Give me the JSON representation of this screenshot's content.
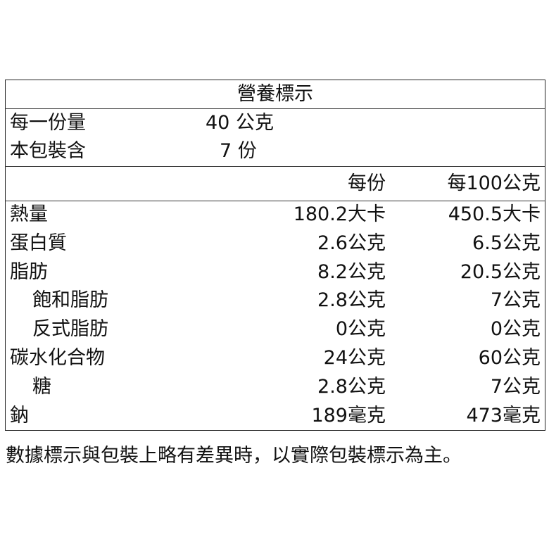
{
  "title": "營養標示",
  "serving": [
    {
      "label": "每一份量",
      "value": "40 公克"
    },
    {
      "label": "本包裝含",
      "value": "7 份"
    }
  ],
  "columns": [
    "每份",
    "每100公克"
  ],
  "rows": [
    {
      "name": "熱量",
      "indent": false,
      "per_serving": "180.2大卡",
      "per_100g": "450.5大卡"
    },
    {
      "name": "蛋白質",
      "indent": false,
      "per_serving": "2.6公克",
      "per_100g": "6.5公克"
    },
    {
      "name": "脂肪",
      "indent": false,
      "per_serving": "8.2公克",
      "per_100g": "20.5公克"
    },
    {
      "name": "飽和脂肪",
      "indent": true,
      "per_serving": "2.8公克",
      "per_100g": "7公克"
    },
    {
      "name": "反式脂肪",
      "indent": true,
      "per_serving": "0公克",
      "per_100g": "0公克"
    },
    {
      "name": "碳水化合物",
      "indent": false,
      "per_serving": "24公克",
      "per_100g": "60公克"
    },
    {
      "name": "糖",
      "indent": true,
      "per_serving": "2.8公克",
      "per_100g": "7公克"
    },
    {
      "name": "鈉",
      "indent": false,
      "per_serving": "189毫克",
      "per_100g": "473毫克"
    }
  ],
  "footer": "數據標示與包裝上略有差異時，以實際包裝標示為主。"
}
